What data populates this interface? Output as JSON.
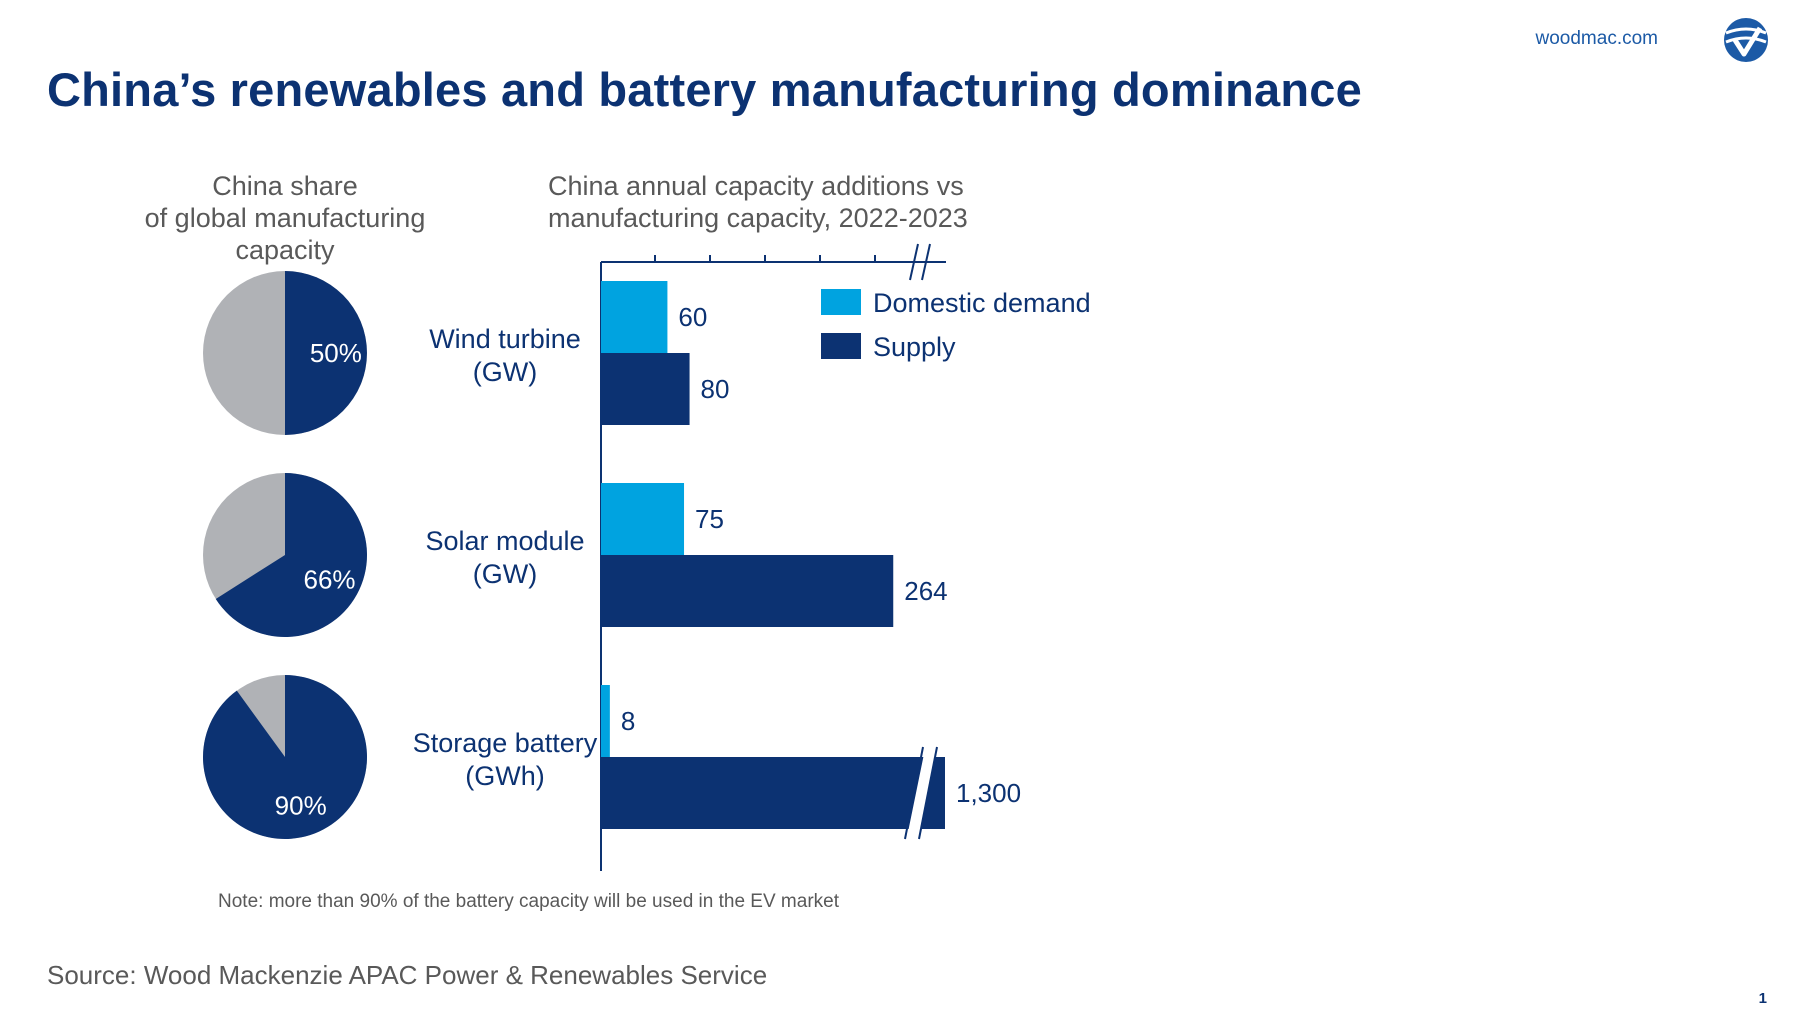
{
  "header": {
    "site": "woodmac.com",
    "title": "China’s renewables and battery manufacturing dominance"
  },
  "footer": {
    "note": "Note: more than 90% of the battery capacity will be used in the EV market",
    "source": "Source: Wood Mackenzie APAC Power & Renewables Service",
    "page_number": "1"
  },
  "colors": {
    "navy": "#0c3272",
    "cyan": "#00a3e0",
    "grey": "#b0b2b6",
    "brand": "#1c5aa6"
  },
  "chart_data": [
    {
      "type": "pie",
      "title": "China share of global manufacturing capacity",
      "title_lines": [
        "China share",
        "of global manufacturing",
        "capacity"
      ],
      "pies": [
        {
          "category": "Wind turbine (GW)",
          "china_share": 50,
          "label": "50%"
        },
        {
          "category": "Solar module (GW)",
          "china_share": 66,
          "label": "66%"
        },
        {
          "category": "Storage battery (GWh)",
          "china_share": 90,
          "label": "90%"
        }
      ]
    },
    {
      "type": "bar",
      "orientation": "horizontal",
      "title": "China annual capacity additions vs manufacturing capacity, 2022-2023",
      "title_lines": [
        "China annual capacity additions vs",
        "manufacturing capacity, 2022-2023"
      ],
      "categories": [
        {
          "lines": [
            "Wind turbine",
            "(GW)"
          ]
        },
        {
          "lines": [
            "Solar module",
            "(GW)"
          ]
        },
        {
          "lines": [
            "Storage battery",
            "(GWh)"
          ]
        }
      ],
      "series": [
        {
          "name": "Domestic demand",
          "values": [
            60,
            75,
            8
          ],
          "labels": [
            "60",
            "75",
            "8"
          ]
        },
        {
          "name": "Supply",
          "values": [
            80,
            264,
            1300
          ],
          "labels": [
            "80",
            "264",
            "1,300"
          ]
        }
      ],
      "axis_break": true,
      "xlim": [
        0,
        300
      ],
      "legend_position": "top-right"
    }
  ]
}
